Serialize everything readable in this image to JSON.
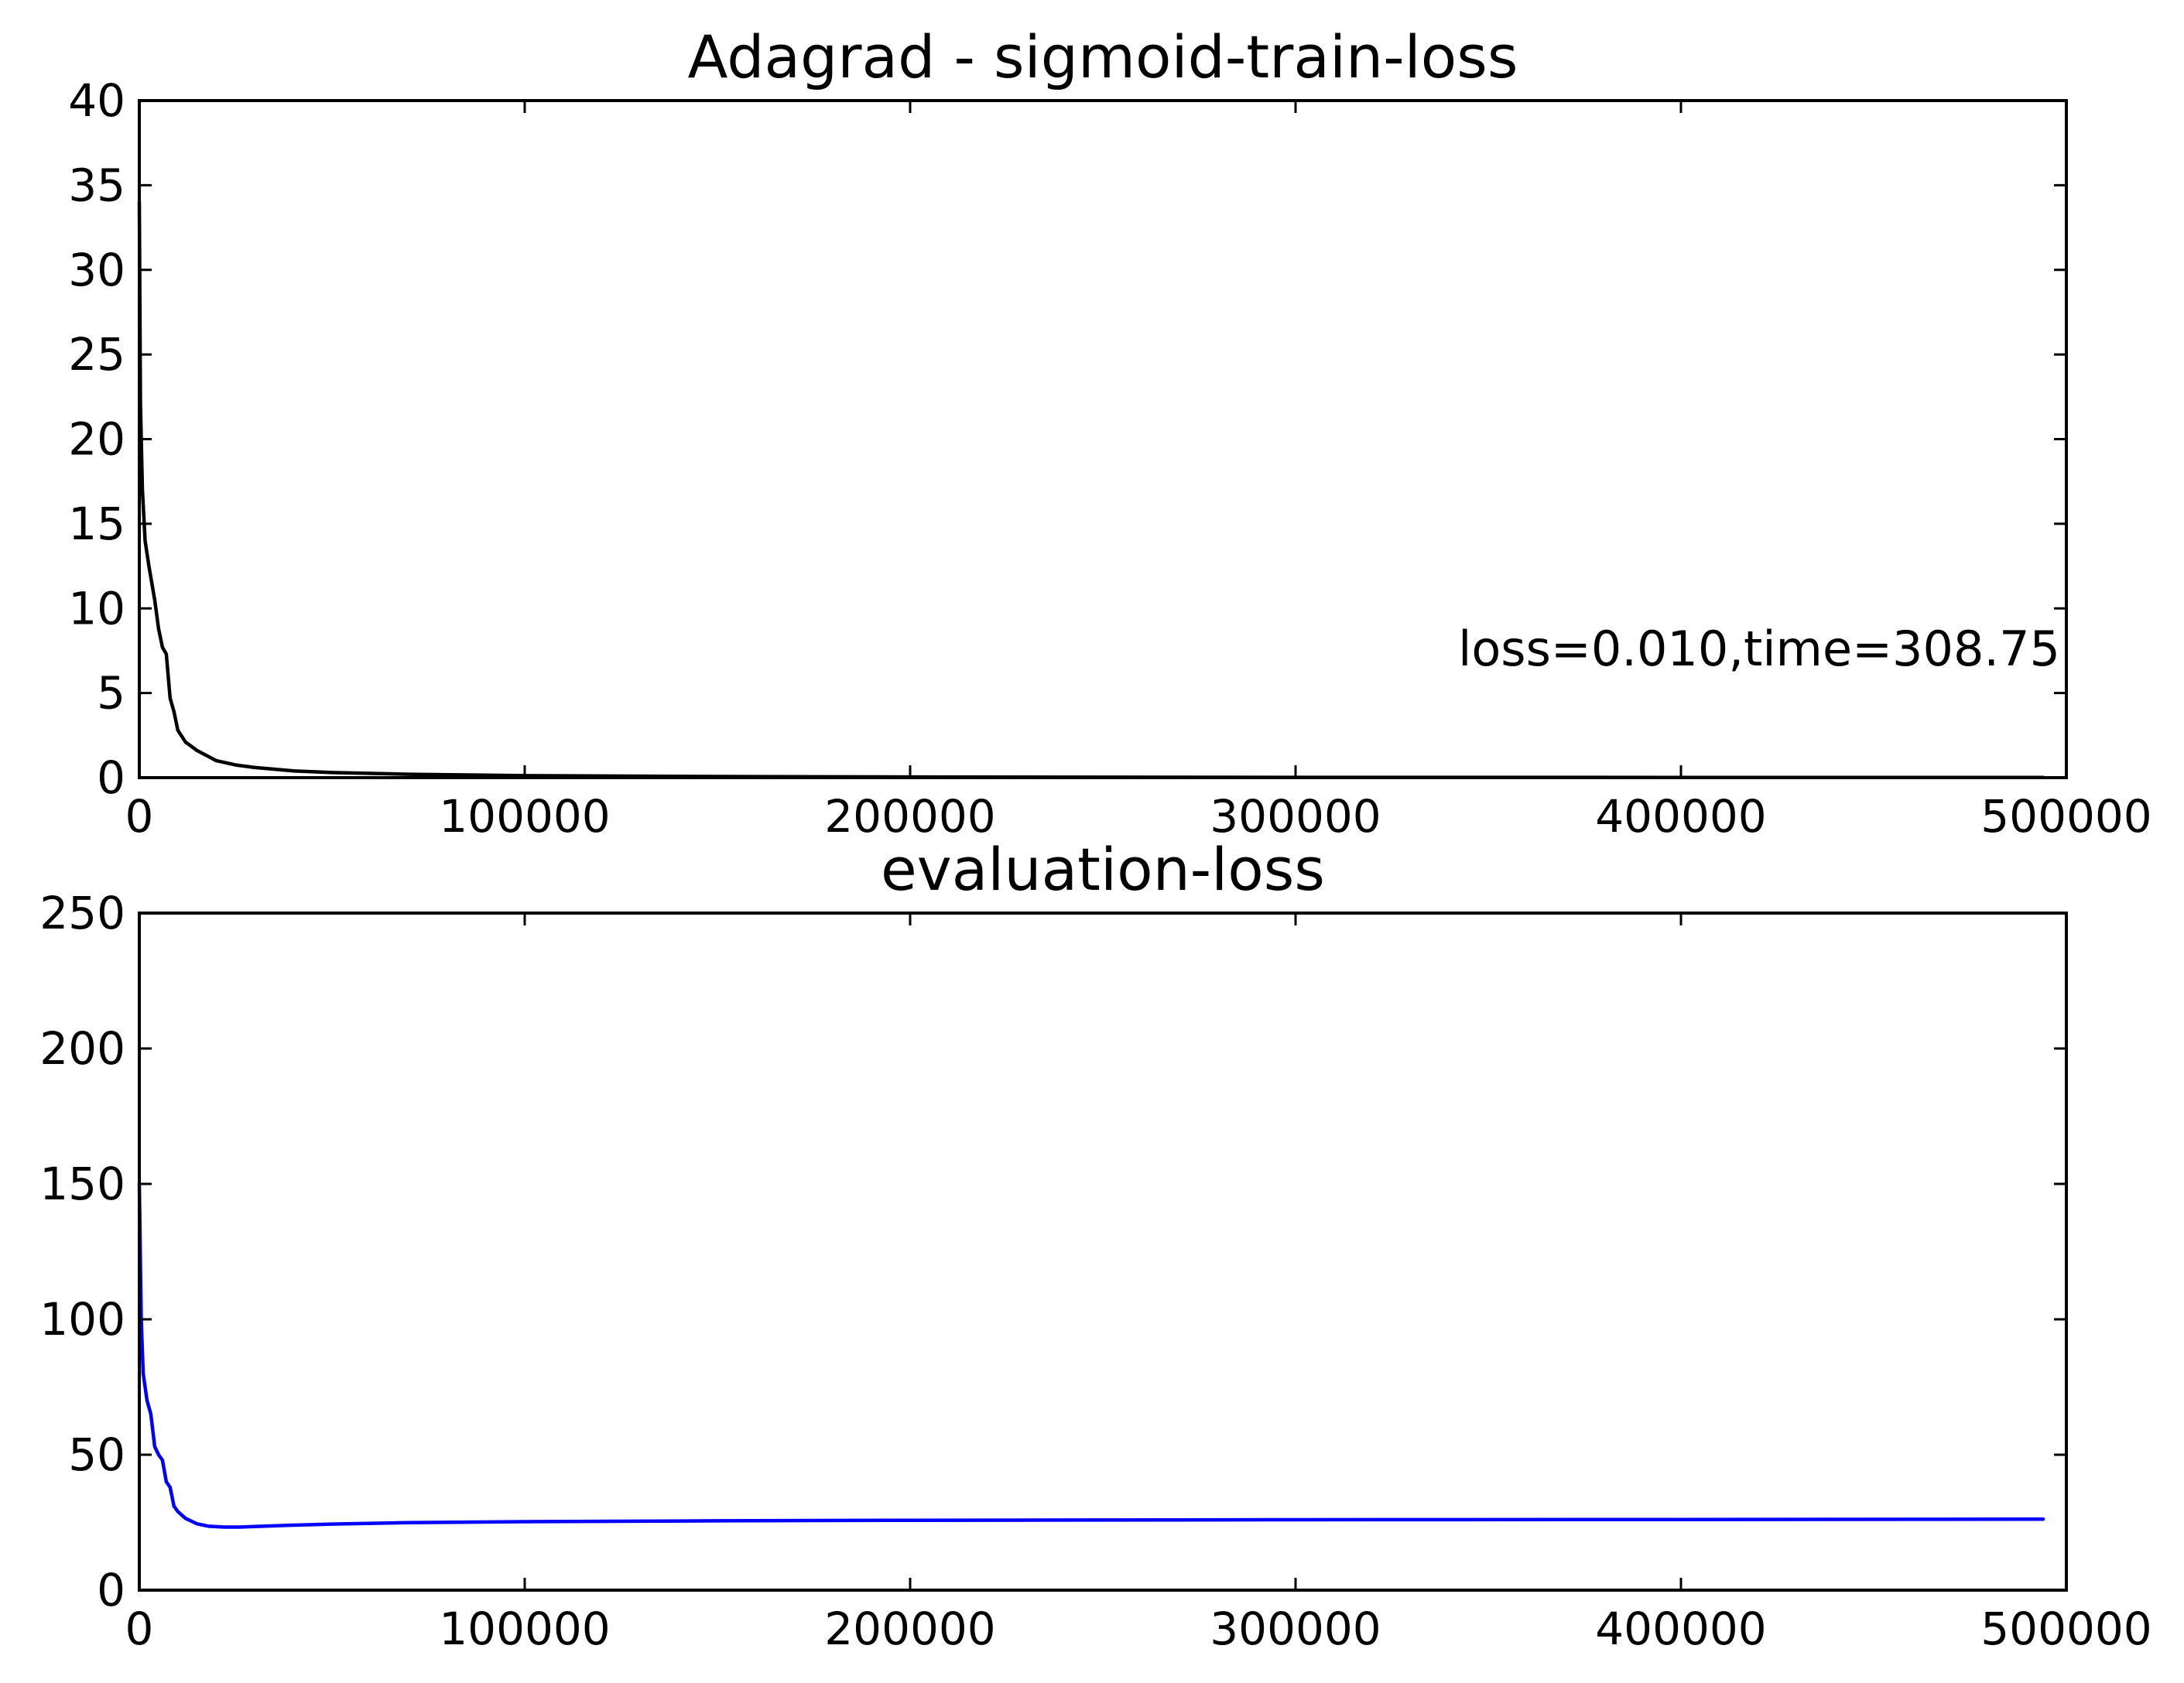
{
  "chart_data": [
    {
      "type": "line",
      "title": "Adagrad - sigmoid-train-loss",
      "xlim": [
        0,
        500000
      ],
      "ylim": [
        0,
        40
      ],
      "xticks": [
        0,
        100000,
        200000,
        300000,
        400000,
        500000
      ],
      "yticks": [
        0,
        5,
        10,
        15,
        20,
        25,
        30,
        35,
        40
      ],
      "grid": false,
      "annotation": "loss=0.010,time=308.75",
      "series": [
        {
          "color": "#000000",
          "x": [
            0,
            300,
            800,
            1500,
            2500,
            4000,
            5000,
            6000,
            7000,
            8000,
            9000,
            10000,
            12000,
            15000,
            20000,
            25000,
            30000,
            40000,
            50000,
            70000,
            100000,
            150000,
            200000,
            300000,
            400000,
            494000
          ],
          "y": [
            34,
            22,
            17,
            14,
            12.5,
            10.5,
            8.8,
            7.7,
            7.3,
            4.7,
            3.9,
            2.8,
            2.1,
            1.6,
            1.0,
            0.75,
            0.6,
            0.4,
            0.3,
            0.2,
            0.12,
            0.07,
            0.04,
            0.02,
            0.012,
            0.01
          ]
        }
      ]
    },
    {
      "type": "line",
      "title": "evaluation-loss",
      "xlim": [
        0,
        500000
      ],
      "ylim": [
        0,
        250
      ],
      "xticks": [
        0,
        100000,
        200000,
        300000,
        400000,
        500000
      ],
      "yticks": [
        0,
        50,
        100,
        150,
        200,
        250
      ],
      "grid": false,
      "series": [
        {
          "color": "#0000ff",
          "x": [
            0,
            500,
            1000,
            2000,
            3000,
            4000,
            5000,
            6000,
            7000,
            8000,
            9000,
            10000,
            12000,
            15000,
            18000,
            22000,
            26000,
            30000,
            40000,
            50000,
            70000,
            100000,
            150000,
            200000,
            300000,
            400000,
            494000
          ],
          "y": [
            150,
            100,
            80,
            70,
            65,
            53,
            50,
            48,
            40,
            38,
            31,
            29,
            26.5,
            24.5,
            23.6,
            23.3,
            23.3,
            23.5,
            24.0,
            24.4,
            24.9,
            25.3,
            25.6,
            25.8,
            26.0,
            26.1,
            26.2
          ]
        }
      ]
    }
  ]
}
